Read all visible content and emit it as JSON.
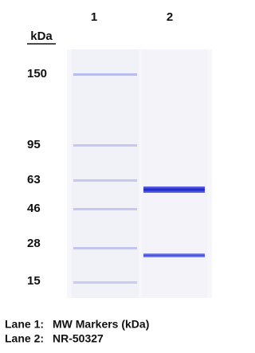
{
  "lanes": [
    "1",
    "2"
  ],
  "unit": "kDa",
  "markers": [
    150,
    95,
    63,
    46,
    28,
    15
  ],
  "legend": [
    {
      "lane": "Lane 1:",
      "description": "MW Markers (kDa)"
    },
    {
      "lane": "Lane 2:",
      "description": "NR-50327"
    }
  ]
}
